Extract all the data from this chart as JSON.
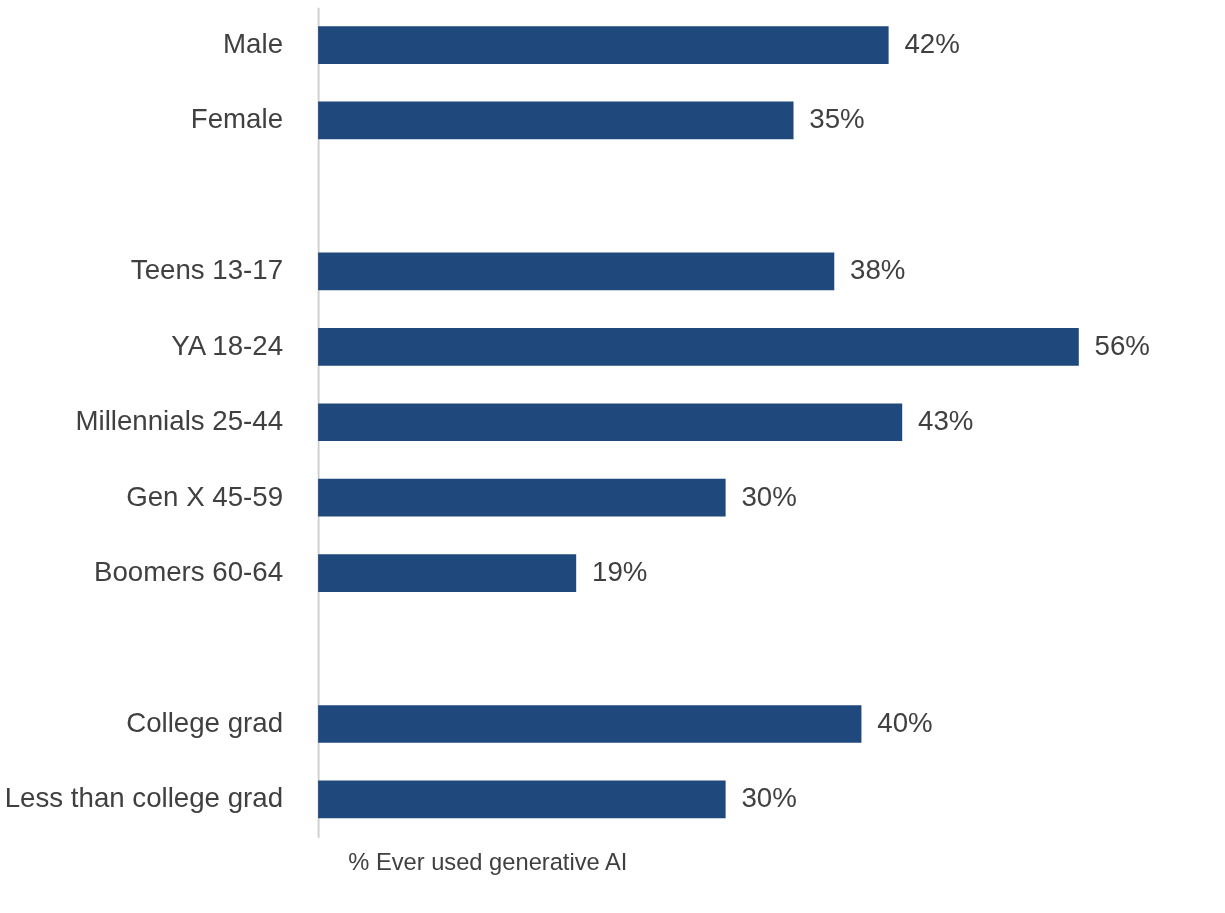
{
  "chart_data": {
    "type": "bar",
    "orientation": "horizontal",
    "xlabel": "% Ever used generative AI",
    "categories": [
      "Male",
      "Female",
      null,
      "Teens 13-17",
      "YA 18-24",
      "Millennials 25-44",
      "Gen X 45-59",
      "Boomers 60-64",
      null,
      "College grad",
      "Less than college grad"
    ],
    "values": [
      42,
      35,
      null,
      38,
      56,
      43,
      30,
      19,
      null,
      40,
      30
    ],
    "value_labels": [
      "42%",
      "35%",
      null,
      "38%",
      "56%",
      "43%",
      "30%",
      "19%",
      null,
      "40%",
      "30%"
    ],
    "color": "#1f497d",
    "grid": false
  }
}
